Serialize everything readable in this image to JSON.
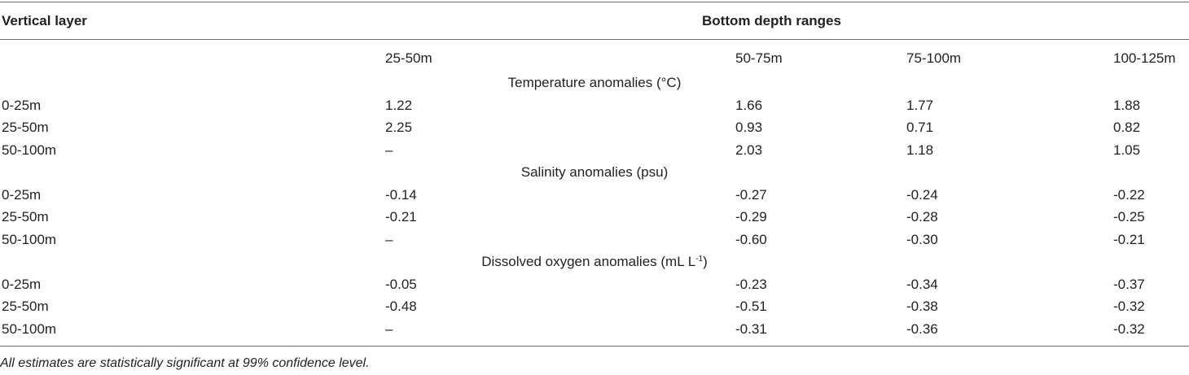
{
  "header": {
    "vertical_layer": "Vertical layer",
    "bottom_depth_ranges": "Bottom depth ranges"
  },
  "columns": [
    "25-50m",
    "50-75m",
    "75-100m",
    "100-125m"
  ],
  "sections": [
    {
      "title": "Temperature anomalies (°C)",
      "rows": [
        {
          "layer": "0-25m",
          "values": [
            "1.22",
            "1.66",
            "1.77",
            "1.88"
          ]
        },
        {
          "layer": "25-50m",
          "values": [
            "2.25",
            "0.93",
            "0.71",
            "0.82"
          ]
        },
        {
          "layer": "50-100m",
          "values": [
            "–",
            "2.03",
            "1.18",
            "1.05"
          ]
        }
      ]
    },
    {
      "title": "Salinity anomalies (psu)",
      "rows": [
        {
          "layer": "0-25m",
          "values": [
            "-0.14",
            "-0.27",
            "-0.24",
            "-0.22"
          ]
        },
        {
          "layer": "25-50m",
          "values": [
            "-0.21",
            "-0.29",
            "-0.28",
            "-0.25"
          ]
        },
        {
          "layer": "50-100m",
          "values": [
            "–",
            "-0.60",
            "-0.30",
            "-0.21"
          ]
        }
      ]
    },
    {
      "title": "Dissolved oxygen anomalies (mL L",
      "title_sup": "-1",
      "title_end": ")",
      "rows": [
        {
          "layer": "0-25m",
          "values": [
            "-0.05",
            "-0.23",
            "-0.34",
            "-0.37"
          ]
        },
        {
          "layer": "25-50m",
          "values": [
            "-0.48",
            "-0.51",
            "-0.38",
            "-0.32"
          ]
        },
        {
          "layer": "50-100m",
          "values": [
            "–",
            "-0.31",
            "-0.36",
            "-0.32"
          ]
        }
      ]
    }
  ],
  "footnote": "All estimates are statistically significant at 99% confidence level."
}
